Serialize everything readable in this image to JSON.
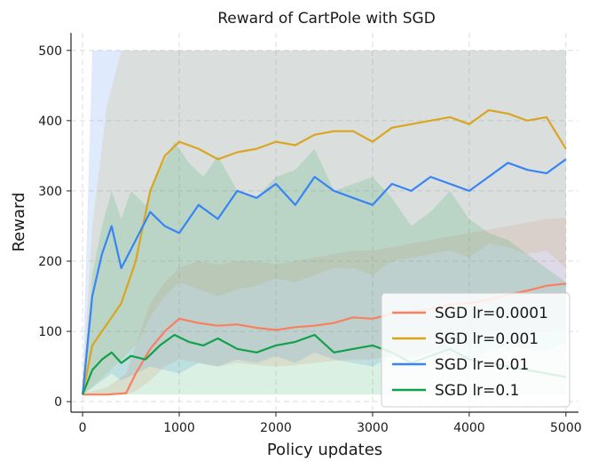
{
  "chart_data": {
    "type": "line",
    "title": "Reward of CartPole with SGD",
    "xlabel": "Policy updates",
    "ylabel": "Reward",
    "xlim": [
      -120,
      5130
    ],
    "ylim": [
      -15,
      525
    ],
    "xticks": [
      0,
      1000,
      2000,
      3000,
      4000,
      5000
    ],
    "yticks": [
      0,
      100,
      200,
      300,
      400,
      500
    ],
    "xtick_labels": [
      "0",
      "1000",
      "2000",
      "3000",
      "4000",
      "5000"
    ],
    "ytick_labels": [
      "0",
      "100",
      "200",
      "300",
      "400",
      "500"
    ],
    "grid": true,
    "legend_position": "lower-right",
    "series": [
      {
        "name": "SGD lr=0.0001",
        "color": "#fa7f5e",
        "x": [
          0,
          250,
          450,
          550,
          700,
          850,
          1000,
          1200,
          1400,
          1600,
          1800,
          2000,
          2200,
          2400,
          2600,
          2800,
          3000,
          3200,
          3400,
          3600,
          3800,
          4000,
          4200,
          4400,
          4600,
          4800,
          5000
        ],
        "mean": [
          10,
          10,
          12,
          40,
          75,
          100,
          118,
          112,
          108,
          110,
          105,
          102,
          106,
          108,
          112,
          120,
          118,
          125,
          128,
          132,
          138,
          140,
          145,
          152,
          158,
          165,
          168
        ],
        "upper": [
          12,
          20,
          40,
          80,
          140,
          170,
          190,
          200,
          195,
          200,
          200,
          195,
          200,
          205,
          210,
          215,
          215,
          220,
          225,
          230,
          235,
          240,
          245,
          250,
          255,
          260,
          262
        ],
        "lower": [
          10,
          10,
          10,
          15,
          30,
          50,
          60,
          55,
          50,
          55,
          52,
          50,
          52,
          55,
          58,
          60,
          60,
          65,
          68,
          70,
          75,
          80,
          85,
          90,
          95,
          100,
          102
        ]
      },
      {
        "name": "SGD lr=0.001",
        "color": "#daa520",
        "x": [
          0,
          100,
          250,
          400,
          550,
          700,
          850,
          1000,
          1200,
          1400,
          1600,
          1800,
          2000,
          2200,
          2400,
          2600,
          2800,
          3000,
          3200,
          3400,
          3600,
          3800,
          4000,
          4200,
          4400,
          4600,
          4800,
          5000
        ],
        "mean": [
          10,
          80,
          110,
          140,
          200,
          300,
          350,
          370,
          360,
          345,
          355,
          360,
          370,
          365,
          380,
          385,
          385,
          370,
          390,
          395,
          400,
          405,
          395,
          415,
          410,
          400,
          405,
          360
        ],
        "upper": [
          20,
          250,
          420,
          500,
          500,
          500,
          500,
          500,
          500,
          500,
          500,
          500,
          500,
          500,
          500,
          500,
          500,
          500,
          500,
          500,
          500,
          500,
          500,
          500,
          500,
          500,
          500,
          500
        ],
        "lower": [
          10,
          20,
          40,
          60,
          80,
          120,
          150,
          170,
          160,
          150,
          160,
          165,
          175,
          170,
          180,
          190,
          190,
          180,
          200,
          205,
          210,
          215,
          205,
          225,
          220,
          210,
          215,
          190
        ]
      },
      {
        "name": "SGD lr=0.01",
        "color": "#3784f5",
        "x": [
          0,
          100,
          200,
          300,
          400,
          550,
          700,
          850,
          1000,
          1200,
          1400,
          1600,
          1800,
          2000,
          2200,
          2400,
          2600,
          2800,
          3000,
          3200,
          3400,
          3600,
          3800,
          4000,
          4200,
          4400,
          4600,
          4800,
          5000
        ],
        "mean": [
          10,
          150,
          210,
          250,
          190,
          230,
          270,
          250,
          240,
          280,
          260,
          300,
          290,
          310,
          280,
          320,
          300,
          290,
          280,
          310,
          300,
          320,
          310,
          300,
          320,
          340,
          330,
          325,
          345
        ],
        "upper": [
          30,
          500,
          500,
          500,
          500,
          500,
          500,
          500,
          500,
          500,
          500,
          500,
          500,
          500,
          500,
          500,
          500,
          500,
          500,
          500,
          500,
          500,
          500,
          500,
          500,
          500,
          500,
          500,
          500
        ],
        "lower": [
          10,
          20,
          30,
          40,
          30,
          40,
          50,
          45,
          40,
          55,
          50,
          60,
          55,
          65,
          55,
          70,
          60,
          55,
          50,
          65,
          60,
          70,
          65,
          60,
          70,
          80,
          75,
          72,
          85
        ]
      },
      {
        "name": "SGD lr=0.1",
        "color": "#12a14a",
        "x": [
          0,
          100,
          200,
          300,
          400,
          500,
          650,
          800,
          950,
          1100,
          1250,
          1400,
          1600,
          1800,
          2000,
          2200,
          2400,
          2600,
          2800,
          3000,
          3200,
          3400,
          3600,
          3800,
          4000,
          4200,
          4400,
          4600,
          4800,
          5000
        ],
        "mean": [
          10,
          45,
          60,
          70,
          55,
          65,
          60,
          80,
          95,
          85,
          80,
          90,
          75,
          70,
          80,
          85,
          95,
          70,
          75,
          80,
          70,
          55,
          65,
          75,
          60,
          55,
          50,
          45,
          40,
          35
        ],
        "upper": [
          20,
          180,
          250,
          300,
          260,
          300,
          280,
          330,
          370,
          340,
          320,
          350,
          300,
          290,
          320,
          330,
          360,
          300,
          310,
          320,
          290,
          250,
          270,
          300,
          260,
          240,
          230,
          210,
          190,
          170
        ],
        "lower": [
          10,
          10,
          10,
          10,
          10,
          10,
          10,
          10,
          10,
          10,
          10,
          10,
          10,
          10,
          10,
          10,
          10,
          10,
          10,
          10,
          10,
          10,
          10,
          10,
          10,
          10,
          10,
          10,
          10,
          10
        ]
      }
    ]
  }
}
